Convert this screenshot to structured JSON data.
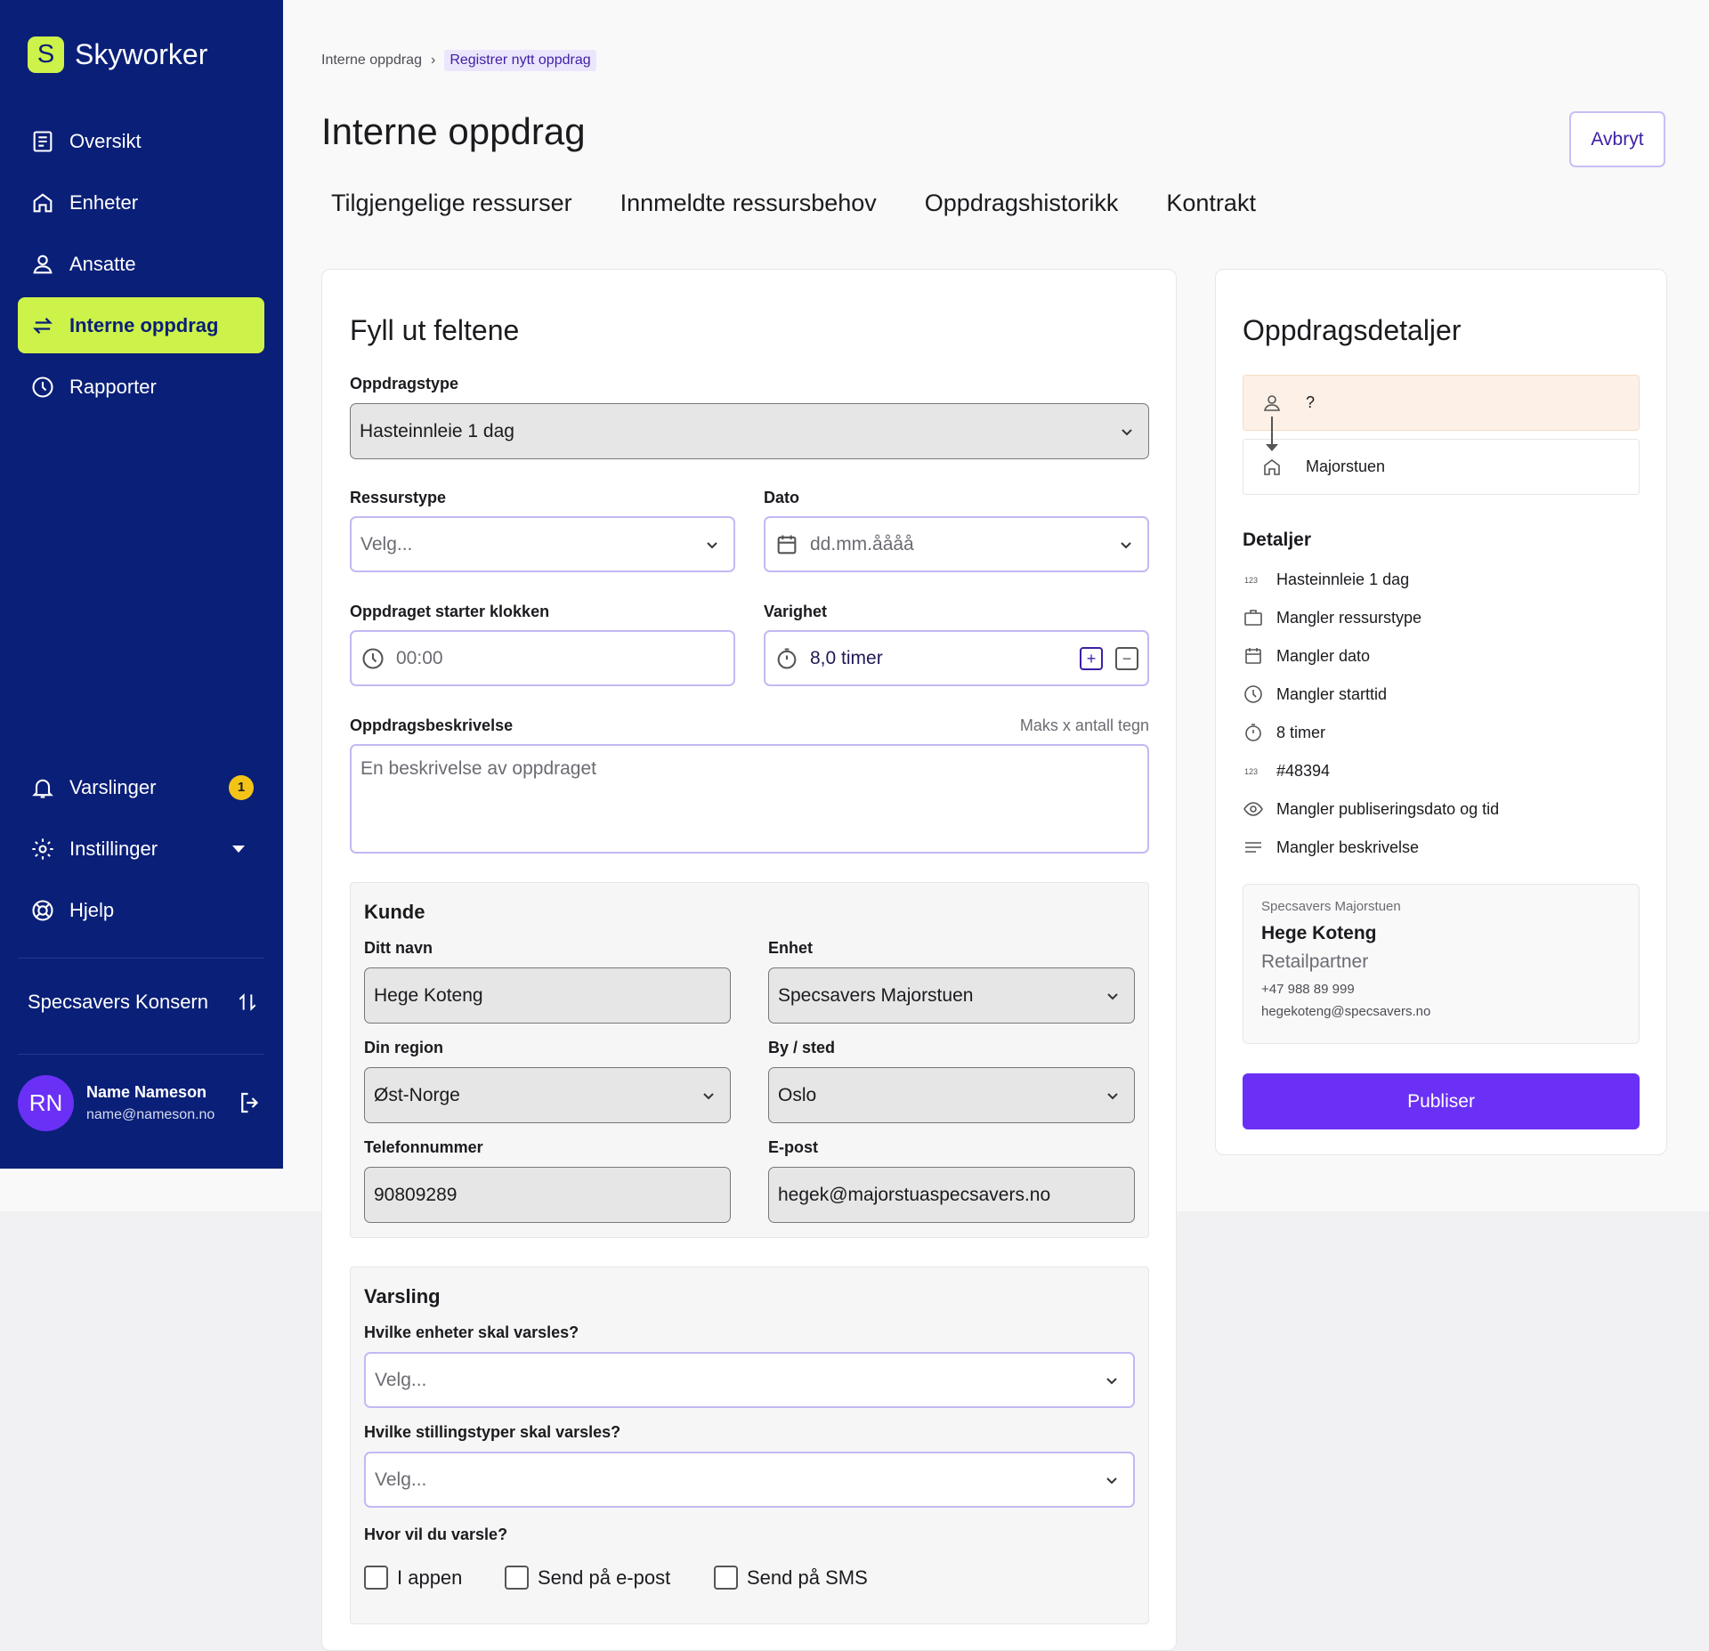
{
  "app": {
    "logo_letter": "S",
    "name": "Skyworker"
  },
  "colors": {
    "sidebar": "#0a1f78",
    "accent": "#cdf24a",
    "primary": "#6a30f5",
    "badge": "#f3c316"
  },
  "sidebar": {
    "items": [
      {
        "label": "Oversikt",
        "icon": "document-icon"
      },
      {
        "label": "Enheter",
        "icon": "home-icon"
      },
      {
        "label": "Ansatte",
        "icon": "person-icon"
      },
      {
        "label": "Interne oppdrag",
        "icon": "swap-arrows-icon",
        "active": true
      },
      {
        "label": "Rapporter",
        "icon": "clock-icon"
      }
    ],
    "bottom_items": [
      {
        "label": "Varslinger",
        "icon": "bell-icon",
        "badge": "1"
      },
      {
        "label": "Instillinger",
        "icon": "gear-icon"
      },
      {
        "label": "Hjelp",
        "icon": "lifebuoy-icon"
      }
    ],
    "org": "Specsavers Konsern",
    "user": {
      "initials": "RN",
      "name": "Name Nameson",
      "email": "name@nameson.no"
    }
  },
  "breadcrumb": {
    "parent": "Interne oppdrag",
    "current": "Registrer nytt oppdrag"
  },
  "header": {
    "title": "Interne oppdrag",
    "cancel_label": "Avbryt"
  },
  "tabs": [
    "Tilgjengelige ressurser",
    "Innmeldte ressursbehov",
    "Oppdragshistorikk",
    "Kontrakt"
  ],
  "form": {
    "title": "Fyll ut feltene",
    "oppdragstype": {
      "label": "Oppdragstype",
      "value": "Hasteinnleie 1 dag"
    },
    "ressurstype": {
      "label": "Ressurstype",
      "placeholder": "Velg..."
    },
    "dato": {
      "label": "Dato",
      "placeholder": "dd.mm.åååå"
    },
    "starttid": {
      "label": "Oppdraget starter klokken",
      "placeholder": "00:00"
    },
    "varighet": {
      "label": "Varighet",
      "value": "8,0 timer",
      "plus": "+",
      "minus": "−"
    },
    "beskrivelse": {
      "label": "Oppdragsbeskrivelse",
      "hint": "Maks x antall tegn",
      "placeholder": "En beskrivelse av oppdraget"
    },
    "kunde": {
      "title": "Kunde",
      "navn": {
        "label": "Ditt navn",
        "value": "Hege Koteng"
      },
      "enhet": {
        "label": "Enhet",
        "value": "Specsavers Majorstuen"
      },
      "region": {
        "label": "Din region",
        "value": "Øst-Norge"
      },
      "sted": {
        "label": "By / sted",
        "value": "Oslo"
      },
      "telefon": {
        "label": "Telefonnummer",
        "value": "90809289"
      },
      "epost": {
        "label": "E-post",
        "value": "hegek@majorstuaspecsavers.no"
      }
    },
    "varsling": {
      "title": "Varsling",
      "enheter": {
        "label": "Hvilke enheter skal varsles?",
        "placeholder": "Velg..."
      },
      "stillinger": {
        "label": "Hvilke stillingstyper skal varsles?",
        "placeholder": "Velg..."
      },
      "hvor": {
        "label": "Hvor vil du varsle?"
      },
      "options": [
        {
          "label": "I appen",
          "checked": false
        },
        {
          "label": "Send på e-post",
          "checked": false
        },
        {
          "label": "Send på SMS",
          "checked": false
        }
      ]
    }
  },
  "details": {
    "title": "Oppdragsdetaljer",
    "route_from": "?",
    "route_to": "Majorstuen",
    "section_title": "Detaljer",
    "rows": [
      {
        "icon": "number-icon",
        "text": "Hasteinnleie 1 dag"
      },
      {
        "icon": "briefcase-icon",
        "text": "Mangler ressurstype"
      },
      {
        "icon": "calendar-icon",
        "text": "Mangler dato"
      },
      {
        "icon": "clock-icon",
        "text": "Mangler starttid"
      },
      {
        "icon": "stopwatch-icon",
        "text": "8 timer"
      },
      {
        "icon": "number-icon",
        "text": "#48394"
      },
      {
        "icon": "eye-icon",
        "text": "Mangler publiseringsdato og tid"
      },
      {
        "icon": "lines-icon",
        "text": "Mangler beskrivelse"
      }
    ],
    "contact": {
      "org": "Specsavers Majorstuen",
      "name": "Hege Koteng",
      "role": "Retailpartner",
      "phone": "+47 988 89 999",
      "email": "hegekoteng@specsavers.no"
    },
    "publish_label": "Publiser"
  }
}
